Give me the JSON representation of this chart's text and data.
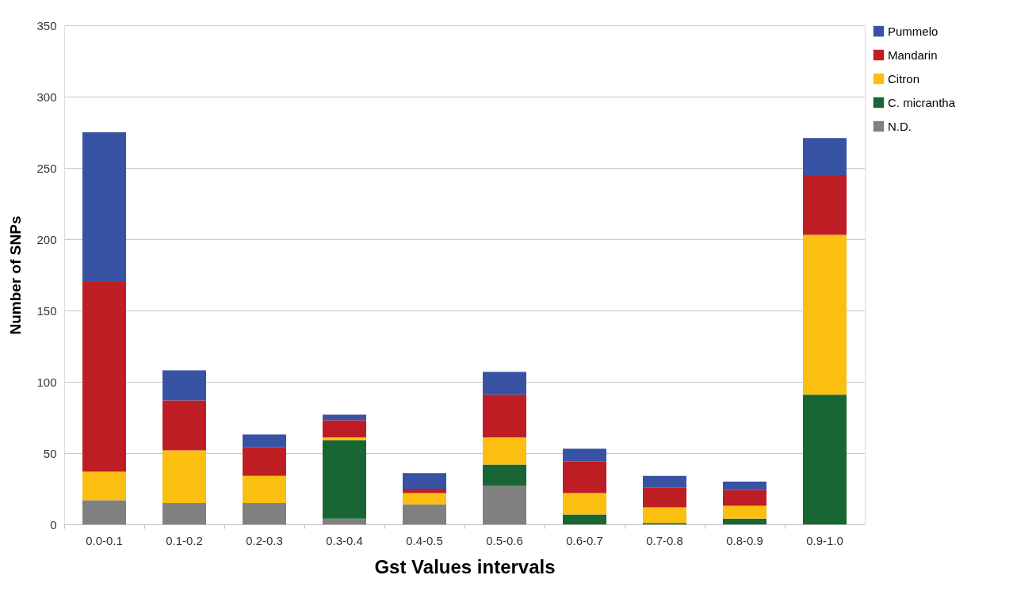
{
  "chart_data": {
    "type": "bar",
    "stacked": true,
    "xlabel": "Gst Values intervals",
    "ylabel": "Number of SNPs",
    "categories": [
      "0.0-0.1",
      "0.1-0.2",
      "0.2-0.3",
      "0.3-0.4",
      "0.4-0.5",
      "0.5-0.6",
      "0.6-0.7",
      "0.7-0.8",
      "0.8-0.9",
      "0.9-1.0"
    ],
    "series": [
      {
        "name": "N.D.",
        "color": "#808080",
        "values": [
          17,
          15,
          15,
          4,
          14,
          27,
          0,
          0,
          0,
          0
        ]
      },
      {
        "name": "C. micrantha",
        "color": "#186634",
        "values": [
          0,
          0,
          0,
          55,
          0,
          15,
          7,
          1,
          4,
          91
        ]
      },
      {
        "name": "Citron",
        "color": "#fbbf12",
        "values": [
          20,
          37,
          19,
          2,
          8,
          19,
          15,
          11,
          9,
          112
        ]
      },
      {
        "name": "Mandarin",
        "color": "#be1e23",
        "values": [
          133,
          35,
          20,
          12,
          3,
          30,
          22,
          14,
          11,
          42
        ]
      },
      {
        "name": "Pummelo",
        "color": "#3853a4",
        "values": [
          105,
          21,
          9,
          4,
          11,
          16,
          9,
          8,
          6,
          26
        ]
      }
    ],
    "ylim": [
      0,
      350
    ],
    "yticks": [
      0,
      50,
      100,
      150,
      200,
      250,
      300,
      350
    ],
    "grid": "y",
    "legend": "right"
  }
}
